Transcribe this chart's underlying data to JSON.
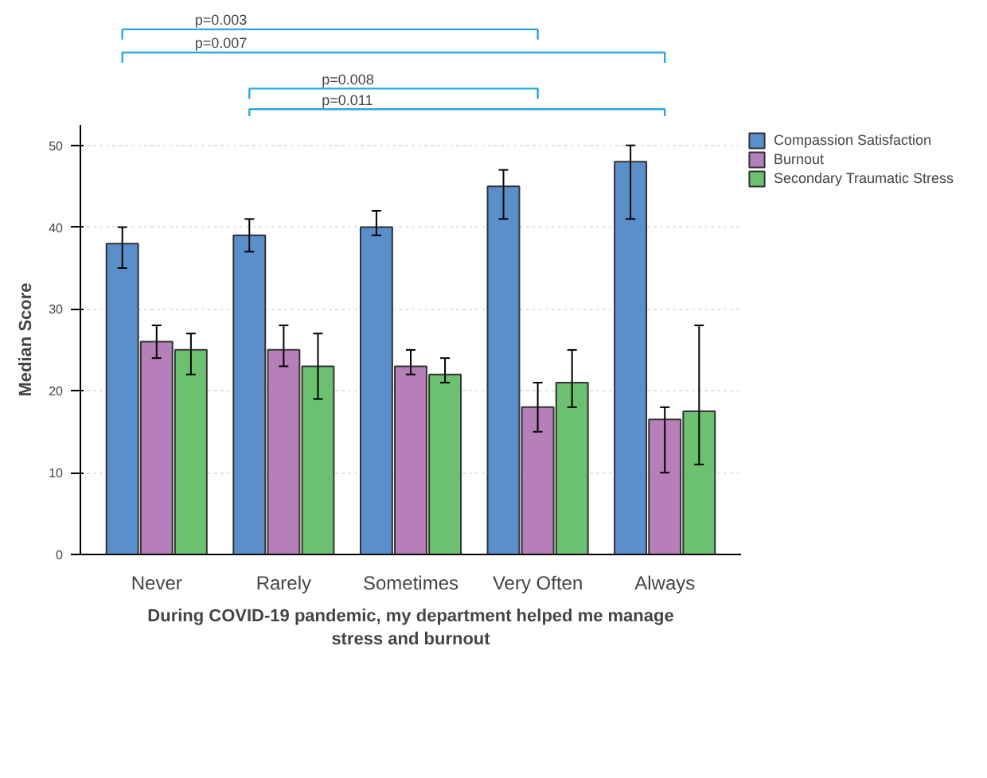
{
  "chart_data": {
    "type": "bar",
    "xlabel": "During COVID-19 pandemic, my department helped me manage stress and burnout",
    "ylabel": "Median Score",
    "categories": [
      "Never",
      "Rarely",
      "Sometimes",
      "Very Often",
      "Always"
    ],
    "series": [
      {
        "name": "Compassion Satisfaction",
        "color": "#5b8fcb",
        "values": [
          38,
          39,
          40,
          45,
          48
        ],
        "errors": [
          [
            35,
            40
          ],
          [
            37,
            41
          ],
          [
            39,
            42
          ],
          [
            41,
            47
          ],
          [
            41,
            50
          ]
        ]
      },
      {
        "name": "Burnout",
        "color": "#b77fb9",
        "values": [
          26,
          25,
          23,
          18,
          16.5
        ],
        "errors": [
          [
            24,
            28
          ],
          [
            23,
            28
          ],
          [
            22,
            25
          ],
          [
            15,
            21
          ],
          [
            10,
            18
          ]
        ]
      },
      {
        "name": "Secondary Traumatic Stress",
        "color": "#6cc170",
        "values": [
          25,
          23,
          22,
          21,
          17.5
        ],
        "errors": [
          [
            22,
            27
          ],
          [
            19,
            27
          ],
          [
            21,
            24
          ],
          [
            18,
            25
          ],
          [
            11,
            28
          ]
        ]
      }
    ],
    "ylim": [
      0,
      52.5
    ],
    "yticks": [
      0,
      10,
      20,
      30,
      40,
      50
    ],
    "grid": "y",
    "legend": "top right",
    "annotations": [
      "p=0.003",
      "p=0.007",
      "p=0.008",
      "p=0.011"
    ]
  }
}
